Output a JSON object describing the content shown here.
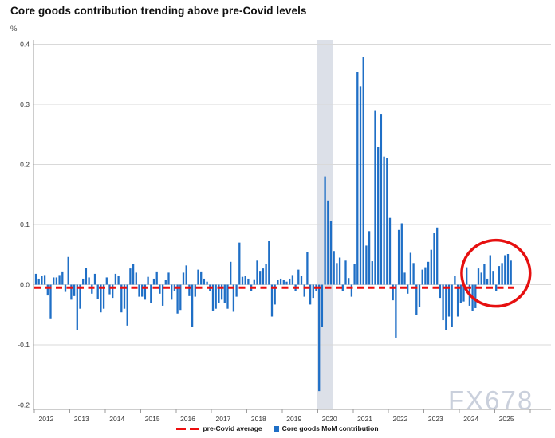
{
  "page": {
    "title": "Core goods contribution trending above pre-Covid levels",
    "unit_label": "%",
    "watermark": "FX678"
  },
  "legend": {
    "items": [
      {
        "label": "pre-Covid average",
        "marker": "red-dashes",
        "color": "#ed0e0e"
      },
      {
        "label": "Core goods MoM contribution",
        "marker": "blue-square",
        "color": "#1f6fc6"
      }
    ]
  },
  "chart_data": {
    "type": "bar",
    "title": "Core goods contribution trending above pre-Covid levels",
    "ylabel": "%",
    "xlabel": "",
    "grid": true,
    "legend_position": "bottom",
    "x_tick_labels": [
      "2012",
      "2013",
      "2014",
      "2015",
      "2016",
      "2017",
      "2018",
      "2019",
      "2020",
      "2021",
      "2022",
      "2023",
      "2024",
      "2025"
    ],
    "y_ticks": [
      0.4,
      0.3,
      0.2,
      0.1,
      0.0,
      -0.1,
      -0.2
    ],
    "ylim": [
      -0.2,
      0.41
    ],
    "frequency": "monthly",
    "start_period": "2012-01",
    "end_period": "2025-06",
    "series": [
      {
        "name": "Core goods MoM contribution",
        "color": "#1f6fc6",
        "values": [
          0.018,
          0.01,
          0.014,
          0.016,
          -0.018,
          -0.056,
          0.012,
          0.012,
          0.016,
          0.022,
          -0.012,
          0.046,
          -0.025,
          -0.019,
          -0.076,
          -0.04,
          0.01,
          0.028,
          0.012,
          -0.015,
          0.018,
          -0.024,
          -0.046,
          -0.04,
          0.012,
          -0.016,
          -0.022,
          0.018,
          0.015,
          -0.046,
          -0.04,
          -0.068,
          0.027,
          0.035,
          0.02,
          -0.02,
          -0.02,
          -0.025,
          0.013,
          -0.03,
          0.01,
          0.022,
          -0.015,
          -0.035,
          0.008,
          0.02,
          -0.025,
          -0.01,
          -0.048,
          -0.042,
          0.02,
          0.032,
          -0.019,
          -0.07,
          -0.02,
          0.025,
          0.022,
          0.01,
          0.005,
          -0.01,
          -0.043,
          -0.04,
          -0.03,
          -0.025,
          -0.03,
          -0.04,
          0.038,
          -0.045,
          -0.02,
          0.07,
          0.013,
          0.015,
          0.01,
          -0.01,
          0.009,
          0.04,
          0.023,
          0.027,
          0.034,
          0.073,
          -0.053,
          -0.033,
          0.008,
          0.01,
          0.008,
          0.005,
          0.01,
          0.016,
          -0.01,
          0.025,
          0.014,
          -0.02,
          0.054,
          -0.033,
          -0.022,
          -0.01,
          -0.177,
          -0.07,
          0.18,
          0.14,
          0.106,
          0.056,
          0.036,
          0.045,
          -0.01,
          0.04,
          0.011,
          -0.02,
          0.034,
          0.354,
          0.33,
          0.379,
          0.065,
          0.089,
          0.039,
          0.29,
          0.229,
          0.284,
          0.213,
          0.21,
          0.111,
          -0.026,
          -0.088,
          0.091,
          0.102,
          0.02,
          -0.015,
          0.053,
          0.036,
          -0.05,
          -0.037,
          0.025,
          0.029,
          0.038,
          0.058,
          0.086,
          0.095,
          -0.022,
          -0.059,
          -0.075,
          -0.053,
          -0.07,
          0.014,
          -0.053,
          -0.03,
          -0.028,
          0.029,
          -0.035,
          -0.044,
          -0.039,
          0.027,
          0.02,
          0.035,
          0.01,
          0.049,
          0.023,
          -0.011,
          0.031,
          0.036,
          0.049,
          0.051,
          0.04
        ]
      }
    ],
    "reference_line": {
      "name": "pre-Covid average",
      "value": -0.005,
      "color": "#ed0e0e",
      "style": "dashed",
      "end_month_index": 163
    },
    "covid_band": {
      "start_month_index": 95.4,
      "end_month_index": 100.6,
      "color": "#dce0e8"
    },
    "annotation_circle": {
      "center_month_index": 155.9,
      "center_value": 0.019,
      "radius_months": 11.6,
      "radius_value": 0.055,
      "color": "#e61010"
    }
  }
}
